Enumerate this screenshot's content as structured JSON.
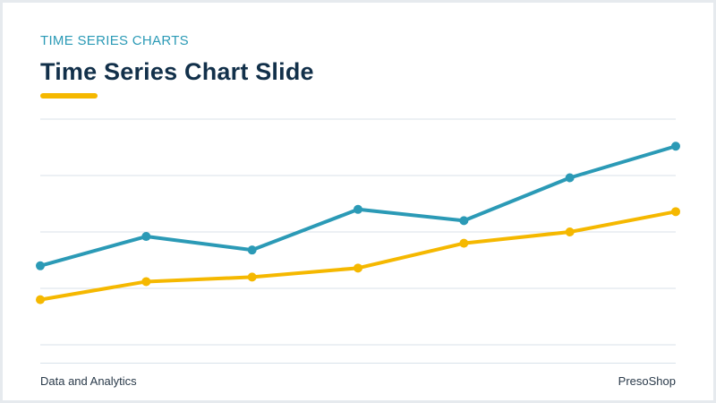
{
  "slide": {
    "kicker": "TIME SERIES CHARTS",
    "title": "Time Series Chart Slide",
    "accent_color": "#f5b800",
    "footer_left": "Data and Analytics",
    "footer_right": "PresoShop"
  },
  "chart_data": {
    "type": "line",
    "title": "",
    "xlabel": "",
    "ylabel": "",
    "x": [
      1,
      2,
      3,
      4,
      5,
      6,
      7
    ],
    "ylim": [
      0,
      100
    ],
    "grid": true,
    "legend": "none",
    "series": [
      {
        "color": "#2b9ab6",
        "values": [
          35,
          48,
          42,
          60,
          55,
          74,
          88
        ]
      },
      {
        "color": "#f5b800",
        "values": [
          20,
          28,
          30,
          34,
          45,
          50,
          59
        ]
      }
    ]
  }
}
